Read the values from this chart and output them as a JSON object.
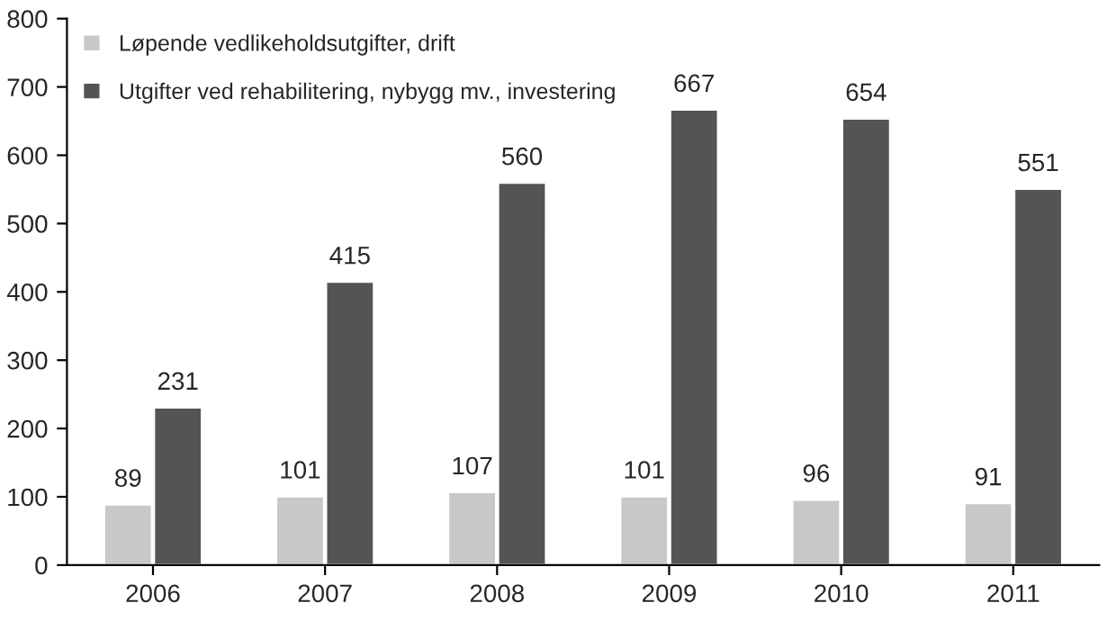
{
  "chart_data": {
    "type": "bar",
    "categories": [
      "2006",
      "2007",
      "2008",
      "2009",
      "2010",
      "2011"
    ],
    "series": [
      {
        "name": "Løpende vedlikeholdsutgifter, drift",
        "color": "#c8c8c8",
        "values": [
          89,
          101,
          107,
          101,
          96,
          91
        ]
      },
      {
        "name": "Utgifter ved rehabilitering, nybygg mv., investering",
        "color": "#545454",
        "values": [
          231,
          415,
          560,
          667,
          654,
          551
        ]
      }
    ],
    "ylim": [
      0,
      800
    ],
    "yticks": [
      0,
      100,
      200,
      300,
      400,
      500,
      600,
      700,
      800
    ],
    "data_labels": true,
    "grid": false,
    "legend": "top left"
  }
}
